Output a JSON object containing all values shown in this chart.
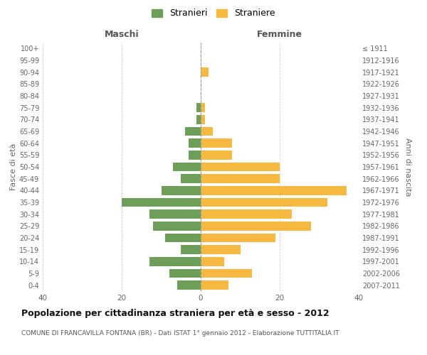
{
  "age_groups": [
    "0-4",
    "5-9",
    "10-14",
    "15-19",
    "20-24",
    "25-29",
    "30-34",
    "35-39",
    "40-44",
    "45-49",
    "50-54",
    "55-59",
    "60-64",
    "65-69",
    "70-74",
    "75-79",
    "80-84",
    "85-89",
    "90-94",
    "95-99",
    "100+"
  ],
  "birth_years": [
    "2007-2011",
    "2002-2006",
    "1997-2001",
    "1992-1996",
    "1987-1991",
    "1982-1986",
    "1977-1981",
    "1972-1976",
    "1967-1971",
    "1962-1966",
    "1957-1961",
    "1952-1956",
    "1947-1951",
    "1942-1946",
    "1937-1941",
    "1932-1936",
    "1927-1931",
    "1922-1926",
    "1917-1921",
    "1912-1916",
    "≤ 1911"
  ],
  "maschi": [
    6,
    8,
    13,
    5,
    9,
    12,
    13,
    20,
    10,
    5,
    7,
    3,
    3,
    4,
    1,
    1,
    0,
    0,
    0,
    0,
    0
  ],
  "femmine": [
    7,
    13,
    6,
    10,
    19,
    28,
    23,
    32,
    37,
    20,
    20,
    8,
    8,
    3,
    1,
    1,
    0,
    0,
    2,
    0,
    0
  ],
  "maschi_color": "#6d9e5a",
  "femmine_color": "#f5b942",
  "background_color": "#ffffff",
  "grid_color": "#cccccc",
  "title": "Popolazione per cittadinanza straniera per età e sesso - 2012",
  "subtitle": "COMUNE DI FRANCAVILLA FONTANA (BR) - Dati ISTAT 1° gennaio 2012 - Elaborazione TUTTITALIA.IT",
  "ylabel_left": "Fasce di età",
  "ylabel_right": "Anni di nascita",
  "legend_maschi": "Stranieri",
  "legend_femmine": "Straniere",
  "xlim": 40,
  "maschi_label": "Maschi",
  "femmine_label": "Femmine"
}
